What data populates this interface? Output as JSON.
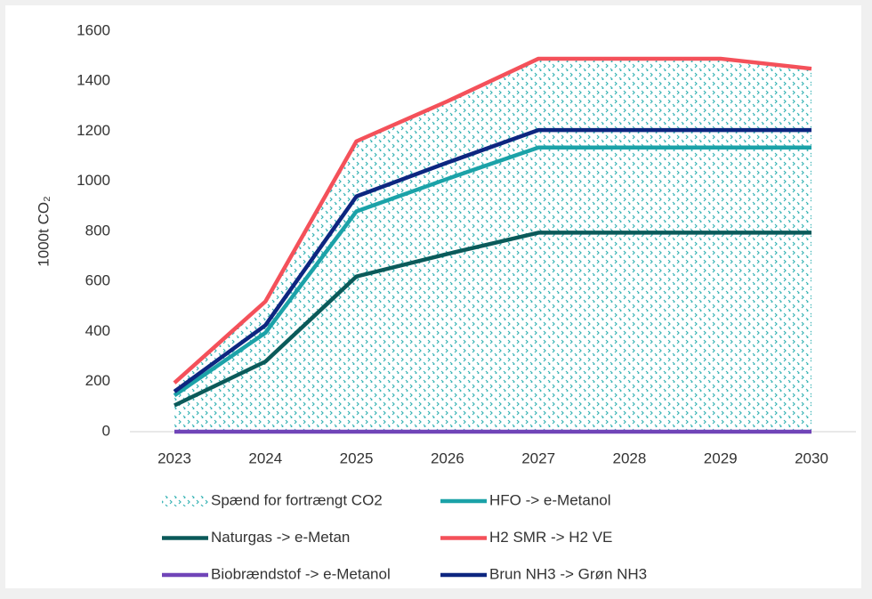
{
  "chart_data": {
    "type": "line",
    "y_label": "1000t CO₂",
    "categories": [
      "2023",
      "2024",
      "2025",
      "2026",
      "2027",
      "2028",
      "2029",
      "2030"
    ],
    "series": [
      {
        "name": "Spænd for fortrængt CO2",
        "kind": "area",
        "color": "#38b3b5",
        "values": [
          195,
          520,
          1160,
          1320,
          1490,
          1490,
          1490,
          1450
        ]
      },
      {
        "name": "HFO -> e-Metanol",
        "color": "#1ba2a8",
        "values": [
          145,
          395,
          880,
          1010,
          1135,
          1135,
          1135,
          1135
        ]
      },
      {
        "name": "Naturgas -> e-Metan",
        "color": "#0b5a5a",
        "values": [
          105,
          280,
          620,
          710,
          795,
          795,
          795,
          795
        ]
      },
      {
        "name": "H2 SMR -> H2 VE",
        "color": "#f4515a",
        "values": [
          195,
          520,
          1160,
          1320,
          1490,
          1490,
          1490,
          1450
        ]
      },
      {
        "name": "Biobrændstof -> e-Metanol",
        "color": "#7045b8",
        "values": [
          0,
          0,
          0,
          0,
          0,
          0,
          0,
          0
        ]
      },
      {
        "name": "Brun NH3 -> Grøn NH3",
        "color": "#0d2680",
        "values": [
          160,
          425,
          940,
          1075,
          1205,
          1205,
          1205,
          1205
        ]
      }
    ],
    "ylim": [
      0,
      1600
    ],
    "yticks": [
      0,
      200,
      400,
      600,
      800,
      1000,
      1200,
      1400,
      1600
    ],
    "grid": false
  }
}
